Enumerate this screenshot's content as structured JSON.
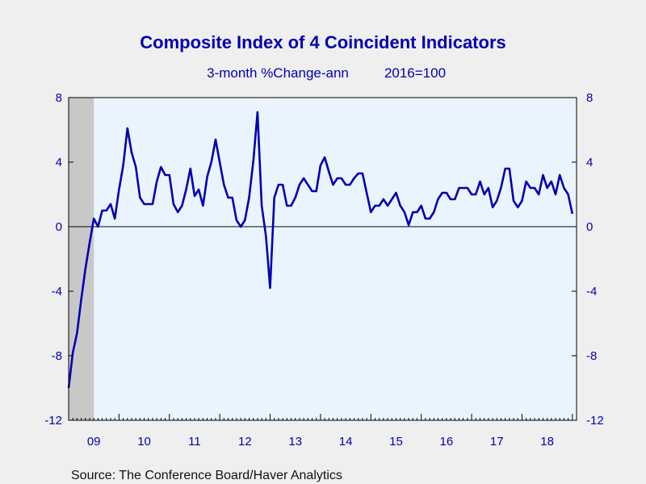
{
  "chart_data": {
    "type": "line",
    "title": "Composite Index of 4 Coincident Indicators",
    "subtitle_left": "3-month %Change-ann",
    "subtitle_right": "2016=100",
    "source": "Source:  The Conference Board/Haver Analytics",
    "ylim": [
      -12,
      8
    ],
    "yticks": [
      8,
      4,
      0,
      -4,
      -8,
      -12
    ],
    "ytick_labels": [
      "8",
      "4",
      "0",
      "-4",
      "-8",
      "-12"
    ],
    "xlim": [
      2009.0,
      2019.083
    ],
    "xtick_labels": [
      "09",
      "10",
      "11",
      "12",
      "13",
      "14",
      "15",
      "16",
      "17",
      "18"
    ],
    "xtick_years": [
      2009,
      2010,
      2011,
      2012,
      2013,
      2014,
      2015,
      2016,
      2017,
      2018
    ],
    "recession_shading": [
      2009.0,
      2009.5
    ],
    "zero_line": true,
    "grid": false,
    "colors": {
      "line": "#0000b3",
      "plot_bg": "#eaf4ff",
      "recession": "#c8c8c8",
      "text": "#0000b3"
    },
    "series": [
      {
        "x": [
          2009.0,
          2009.083,
          2009.167,
          2009.25,
          2009.333,
          2009.417,
          2009.5,
          2009.583,
          2009.667,
          2009.75,
          2009.833,
          2009.917,
          2010.0,
          2010.083,
          2010.167,
          2010.25,
          2010.333,
          2010.417,
          2010.5,
          2010.583,
          2010.667,
          2010.75,
          2010.833,
          2010.917,
          2011.0,
          2011.083,
          2011.167,
          2011.25,
          2011.333,
          2011.417,
          2011.5,
          2011.583,
          2011.667,
          2011.75,
          2011.833,
          2011.917,
          2012.0,
          2012.083,
          2012.167,
          2012.25,
          2012.333,
          2012.417,
          2012.5,
          2012.583,
          2012.667,
          2012.75,
          2012.833,
          2012.917,
          2013.0,
          2013.083,
          2013.167,
          2013.25,
          2013.333,
          2013.417,
          2013.5,
          2013.583,
          2013.667,
          2013.75,
          2013.833,
          2013.917,
          2014.0,
          2014.083,
          2014.167,
          2014.25,
          2014.333,
          2014.417,
          2014.5,
          2014.583,
          2014.667,
          2014.75,
          2014.833,
          2014.917,
          2015.0,
          2015.083,
          2015.167,
          2015.25,
          2015.333,
          2015.417,
          2015.5,
          2015.583,
          2015.667,
          2015.75,
          2015.833,
          2015.917,
          2016.0,
          2016.083,
          2016.167,
          2016.25,
          2016.333,
          2016.417,
          2016.5,
          2016.583,
          2016.667,
          2016.75,
          2016.833,
          2016.917,
          2017.0,
          2017.083,
          2017.167,
          2017.25,
          2017.333,
          2017.417,
          2017.5,
          2017.583,
          2017.667,
          2017.75,
          2017.833,
          2017.917,
          2018.0,
          2018.083,
          2018.167,
          2018.25,
          2018.333,
          2018.417,
          2018.5,
          2018.583,
          2018.667,
          2018.75,
          2018.833,
          2018.917,
          2019.0
        ],
        "values": [
          -10.0,
          -7.8,
          -6.6,
          -4.5,
          -2.6,
          -1.0,
          0.5,
          0.0,
          1.0,
          1.0,
          1.4,
          0.5,
          2.3,
          3.8,
          6.1,
          4.6,
          3.7,
          1.8,
          1.4,
          1.4,
          1.4,
          2.8,
          3.7,
          3.2,
          3.2,
          1.4,
          0.9,
          1.3,
          2.3,
          3.6,
          1.9,
          2.3,
          1.3,
          3.1,
          4.0,
          5.4,
          4.0,
          2.6,
          1.8,
          1.8,
          0.4,
          0.0,
          0.4,
          1.8,
          4.1,
          7.1,
          1.3,
          -0.6,
          -3.8,
          1.8,
          2.6,
          2.6,
          1.3,
          1.3,
          1.8,
          2.6,
          3.0,
          2.6,
          2.2,
          2.2,
          3.8,
          4.3,
          3.4,
          2.6,
          3.0,
          3.0,
          2.6,
          2.6,
          3.0,
          3.3,
          3.3,
          2.1,
          0.9,
          1.3,
          1.3,
          1.7,
          1.3,
          1.7,
          2.1,
          1.3,
          0.9,
          0.1,
          0.9,
          0.9,
          1.3,
          0.5,
          0.5,
          0.9,
          1.7,
          2.1,
          2.1,
          1.7,
          1.7,
          2.4,
          2.4,
          2.4,
          2.0,
          2.0,
          2.8,
          2.0,
          2.4,
          1.2,
          1.6,
          2.4,
          3.6,
          3.6,
          1.6,
          1.2,
          1.6,
          2.8,
          2.4,
          2.4,
          2.0,
          3.2,
          2.4,
          2.8,
          2.0,
          3.2,
          2.4,
          2.0,
          0.8
        ]
      }
    ]
  }
}
